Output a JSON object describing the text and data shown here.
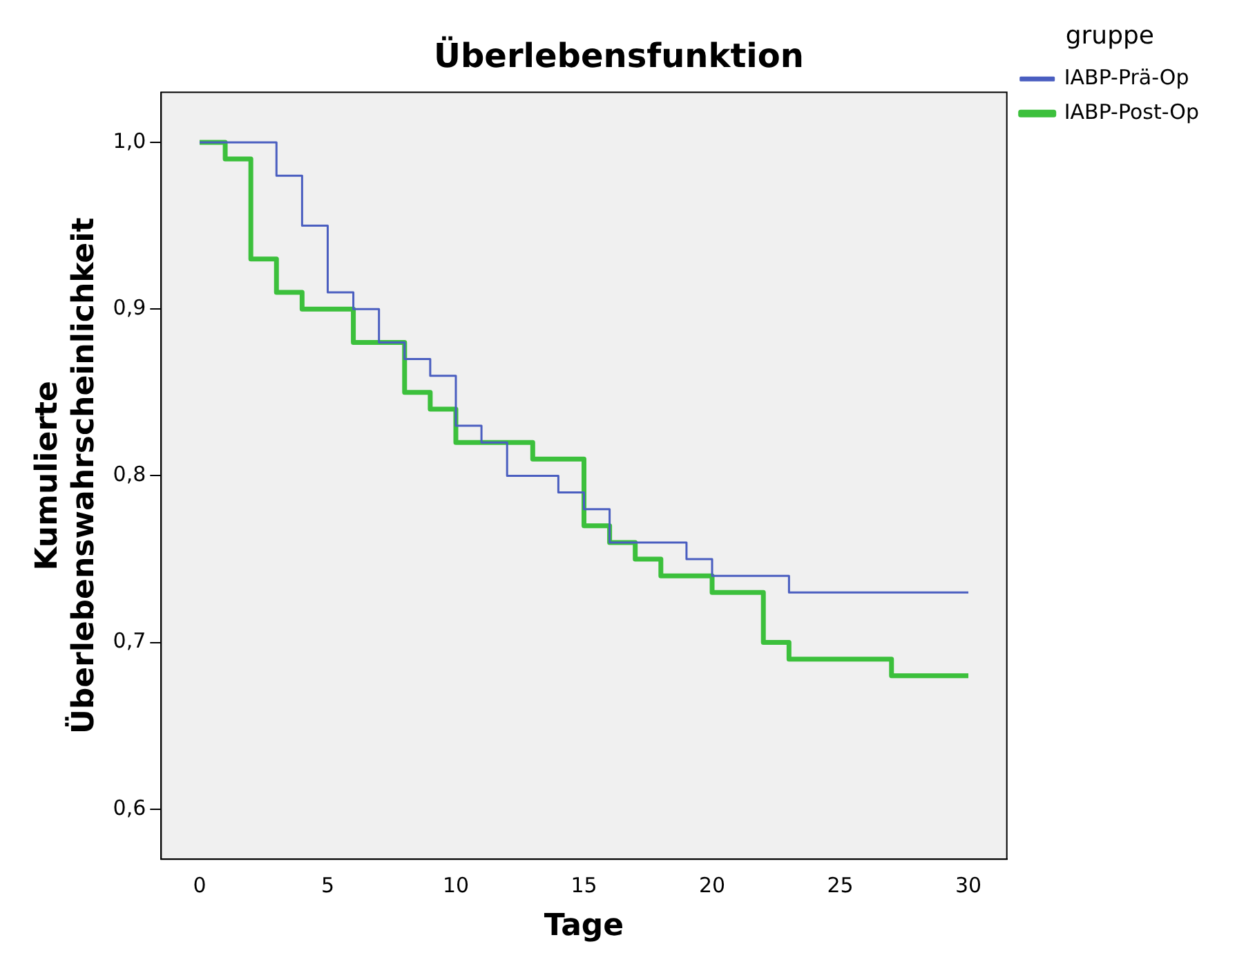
{
  "chart_data": {
    "type": "step",
    "title": "Überlebensfunktion",
    "xlabel": "Tage",
    "ylabel": "Kumulierte Überlebenswahrscheinlichkeit",
    "legend_title": "gruppe",
    "legend": "top right",
    "grid": false,
    "xlim": [
      -1.5,
      31.5
    ],
    "xticks": [
      0,
      5,
      10,
      15,
      20,
      25,
      30
    ],
    "ylim": [
      0.57,
      1.03
    ],
    "yticks": [
      {
        "value": 0.6,
        "label": "0,6"
      },
      {
        "value": 0.7,
        "label": "0,7"
      },
      {
        "value": 0.8,
        "label": "0,8"
      },
      {
        "value": 0.9,
        "label": "0,9"
      },
      {
        "value": 1.0,
        "label": "1,0"
      }
    ],
    "series": [
      {
        "name": "IABP-Prä-Op",
        "color": "#4a5ec0",
        "x": [
          0,
          3,
          4,
          5,
          6,
          7,
          8,
          9,
          10,
          11,
          12,
          14,
          15,
          16,
          19,
          20,
          23,
          30
        ],
        "values": [
          1.0,
          0.98,
          0.95,
          0.91,
          0.9,
          0.88,
          0.87,
          0.86,
          0.83,
          0.82,
          0.8,
          0.79,
          0.78,
          0.76,
          0.75,
          0.74,
          0.73,
          0.73
        ]
      },
      {
        "name": "IABP-Post-Op",
        "color": "#3cc03c",
        "x": [
          0,
          1,
          2,
          3,
          4,
          6,
          8,
          9,
          10,
          13,
          15,
          16,
          17,
          18,
          20,
          22,
          23,
          27,
          30
        ],
        "values": [
          1.0,
          0.99,
          0.93,
          0.91,
          0.9,
          0.88,
          0.85,
          0.84,
          0.82,
          0.81,
          0.77,
          0.76,
          0.75,
          0.74,
          0.73,
          0.7,
          0.69,
          0.68,
          0.68
        ]
      }
    ]
  }
}
